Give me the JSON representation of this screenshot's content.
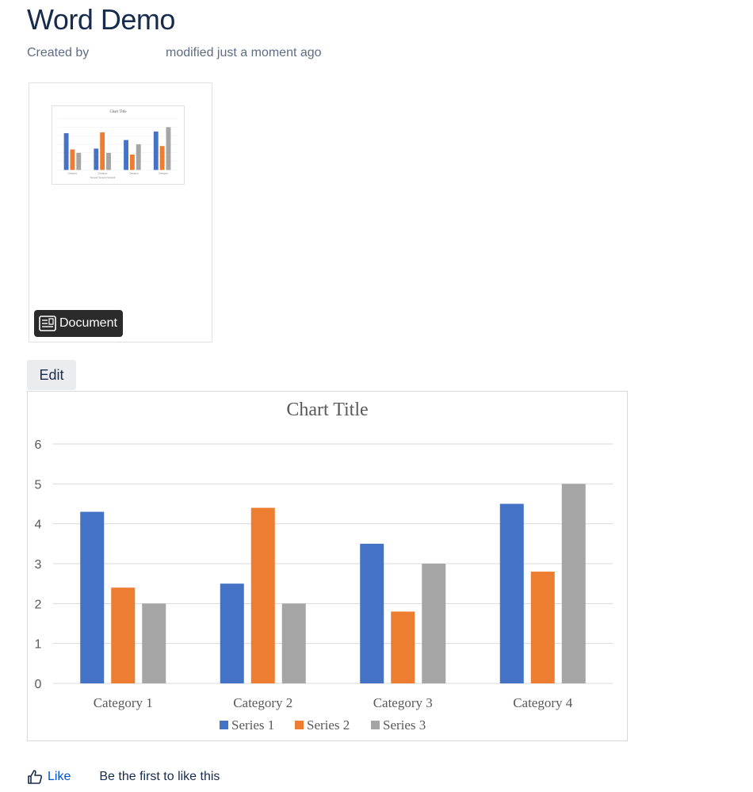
{
  "page": {
    "title": "Word Demo",
    "created_by": "Created by",
    "modified": "modified just a moment ago"
  },
  "attachment": {
    "badge_label": "Document",
    "icon": "document-icon"
  },
  "edit_label": "Edit",
  "like": {
    "label": "Like",
    "message": "Be the first to like this",
    "icon": "thumbs-up-icon"
  },
  "colors": {
    "series1": "#4472C4",
    "series2": "#ED7D31",
    "series3": "#A5A5A5",
    "link": "#0052CC"
  },
  "chart_data": {
    "type": "bar",
    "title": "Chart Title",
    "categories": [
      "Category 1",
      "Category 2",
      "Category 3",
      "Category 4"
    ],
    "series": [
      {
        "name": "Series 1",
        "values": [
          4.3,
          2.5,
          3.5,
          4.5
        ]
      },
      {
        "name": "Series 2",
        "values": [
          2.4,
          4.4,
          1.8,
          2.8
        ]
      },
      {
        "name": "Series 3",
        "values": [
          2,
          2,
          3,
          5
        ]
      }
    ],
    "yticks": [
      "0",
      "1",
      "2",
      "3",
      "4",
      "5",
      "6"
    ],
    "ylim": [
      0,
      6
    ],
    "xlabel": "",
    "ylabel": "",
    "legend": "bottom",
    "grid": true
  }
}
